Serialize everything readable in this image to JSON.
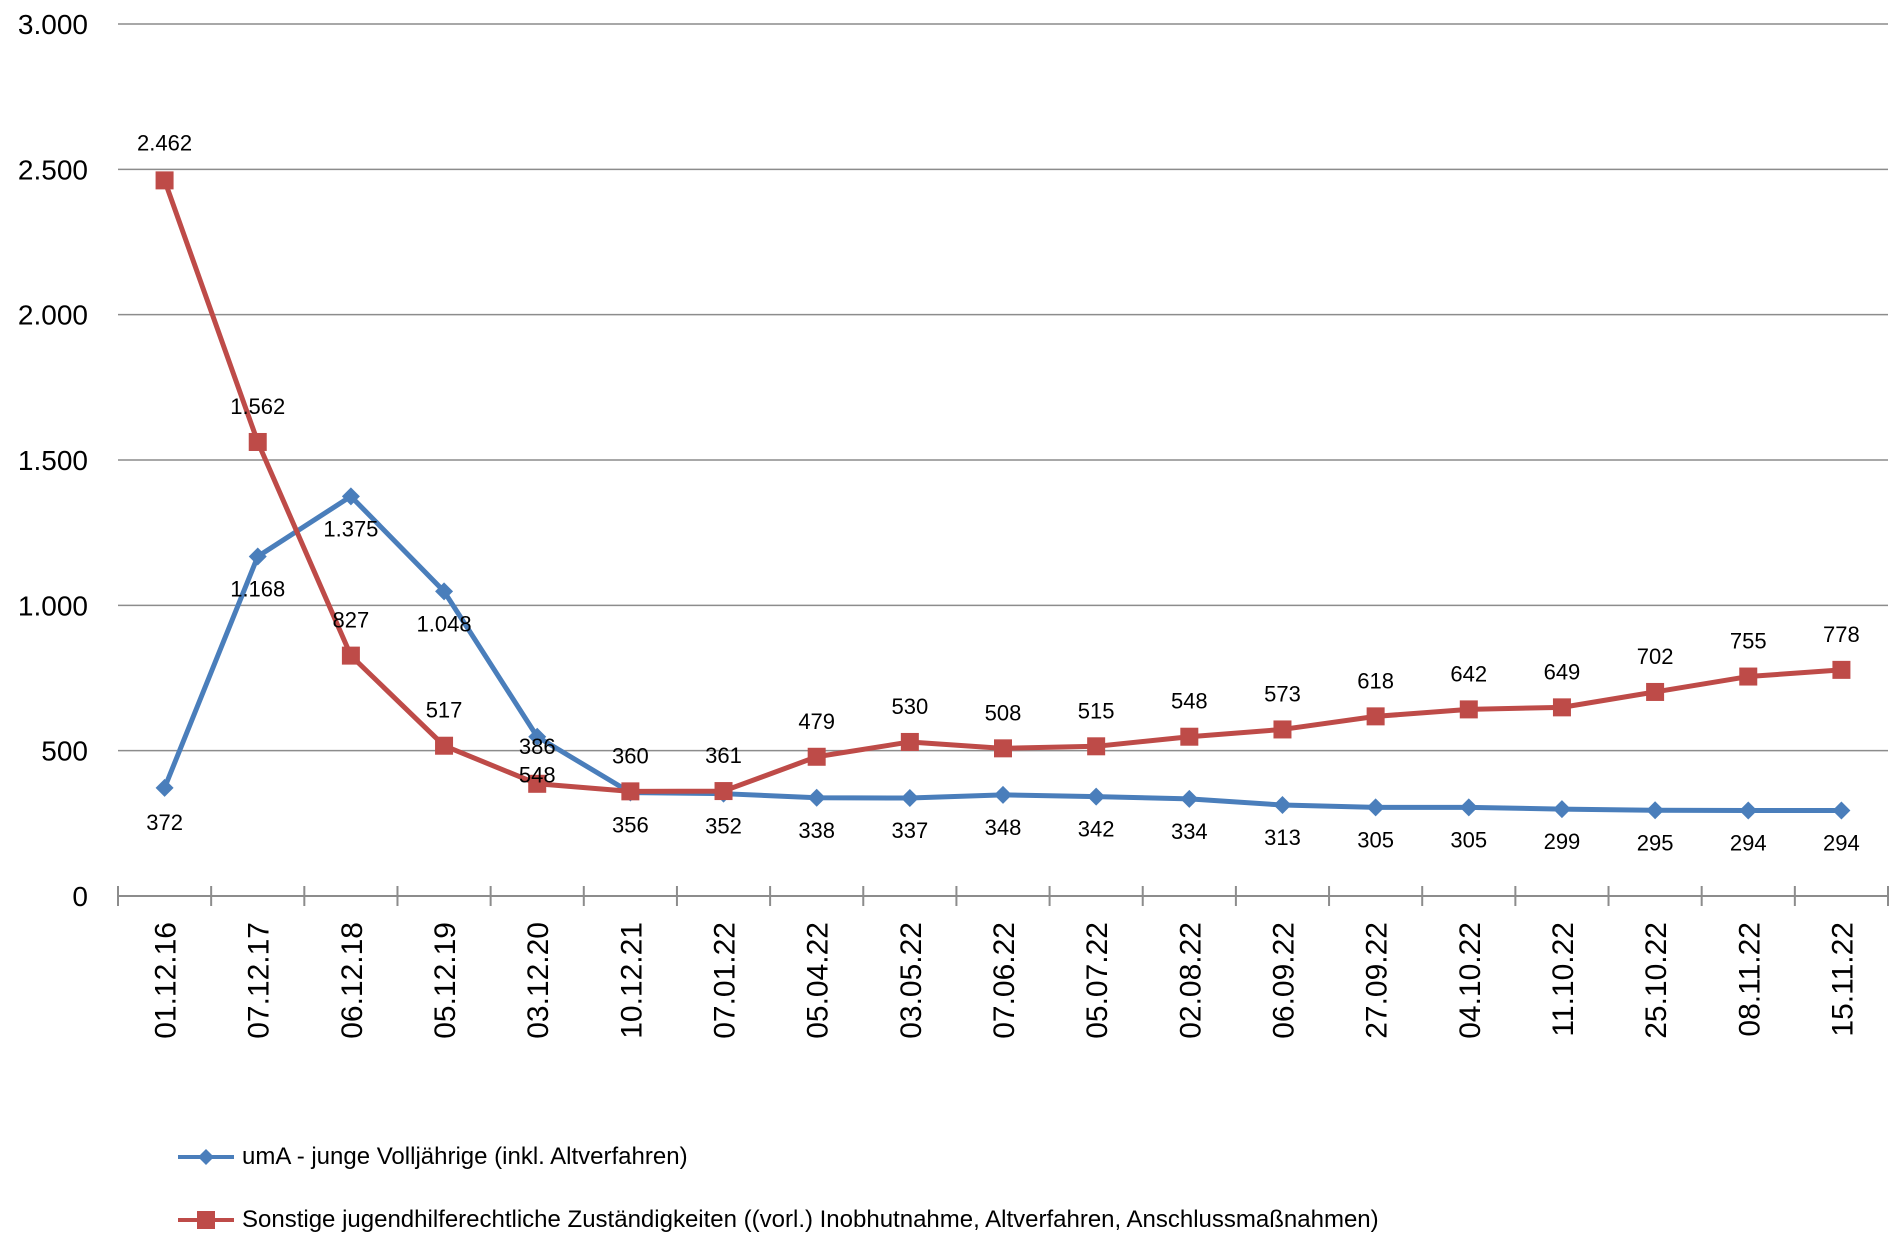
{
  "chart_data": {
    "type": "line",
    "title": "",
    "xlabel": "",
    "ylabel": "",
    "ylim": [
      0,
      3000
    ],
    "yticks": [
      0,
      500,
      1000,
      1500,
      2000,
      2500,
      3000
    ],
    "ytick_labels": [
      "0",
      "500",
      "1.000",
      "1.500",
      "2.000",
      "2.500",
      "3.000"
    ],
    "grid": "horizontal",
    "legend_position": "bottom-left",
    "categories": [
      "01.12.16",
      "07.12.17",
      "06.12.18",
      "05.12.19",
      "03.12.20",
      "10.12.21",
      "07.01.22",
      "05.04.22",
      "03.05.22",
      "07.06.22",
      "05.07.22",
      "02.08.22",
      "06.09.22",
      "27.09.22",
      "04.10.22",
      "11.10.22",
      "25.10.22",
      "08.11.22",
      "15.11.22"
    ],
    "series": [
      {
        "name": "umA - junge Volljährige (inkl. Altverfahren)",
        "color": "#4A7EBB",
        "marker": "diamond",
        "values": [
          372,
          1168,
          1375,
          1048,
          548,
          356,
          352,
          338,
          337,
          348,
          342,
          334,
          313,
          305,
          305,
          299,
          295,
          294,
          294
        ],
        "labels": [
          "372",
          "1.168",
          "1.375",
          "1.048",
          "548",
          "356",
          "352",
          "338",
          "337",
          "348",
          "342",
          "334",
          "313",
          "305",
          "305",
          "299",
          "295",
          "294",
          "294"
        ]
      },
      {
        "name": "Sonstige jugendhilferechtliche Zuständigkeiten ((vorl.) Inobhutnahme, Altverfahren, Anschlussmaßnahmen)",
        "color": "#BE4B48",
        "marker": "square",
        "values": [
          2462,
          1562,
          827,
          517,
          386,
          360,
          361,
          479,
          530,
          508,
          515,
          548,
          573,
          618,
          642,
          649,
          702,
          755,
          778
        ],
        "labels": [
          "2.462",
          "1.562",
          "827",
          "517",
          "386",
          "360",
          "361",
          "479",
          "530",
          "508",
          "515",
          "548",
          "573",
          "618",
          "642",
          "649",
          "702",
          "755",
          "778"
        ]
      }
    ]
  }
}
